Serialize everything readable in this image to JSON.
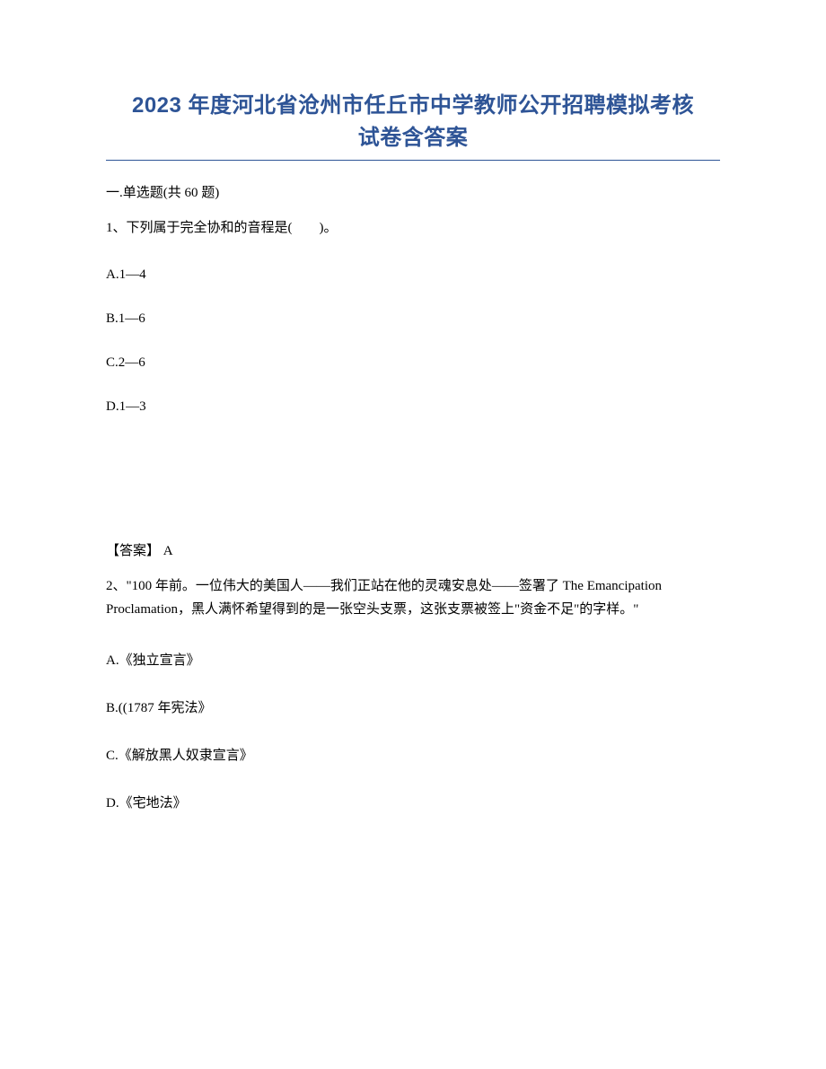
{
  "document": {
    "title_line1": "2023 年度河北省沧州市任丘市中学教师公开招聘模拟考核",
    "title_line2": "试卷含答案",
    "section_header": "一.单选题(共 60 题)",
    "title_color": "#2e5496",
    "underline_color": "#2e5496",
    "text_color": "#000000",
    "background_color": "#ffffff",
    "title_fontsize": 24,
    "body_fontsize": 15
  },
  "question1": {
    "stem": "1、下列属于完全协和的音程是(　　)。",
    "options": {
      "A": "A.1—4",
      "B": "B.1—6",
      "C": "C.2—6",
      "D": "D.1—3"
    },
    "answer": "【答案】 A"
  },
  "question2": {
    "stem": "2、\"100 年前。一位伟大的美国人——我们正站在他的灵魂安息处——签署了 The Emancipation Proclamation，黑人满怀希望得到的是一张空头支票，这张支票被签上\"资金不足\"的字样。\"",
    "options": {
      "A": "A.《独立宣言》",
      "B": "B.((1787 年宪法》",
      "C": "C.《解放黑人奴隶宣言》",
      "D": "D.《宅地法》"
    }
  }
}
